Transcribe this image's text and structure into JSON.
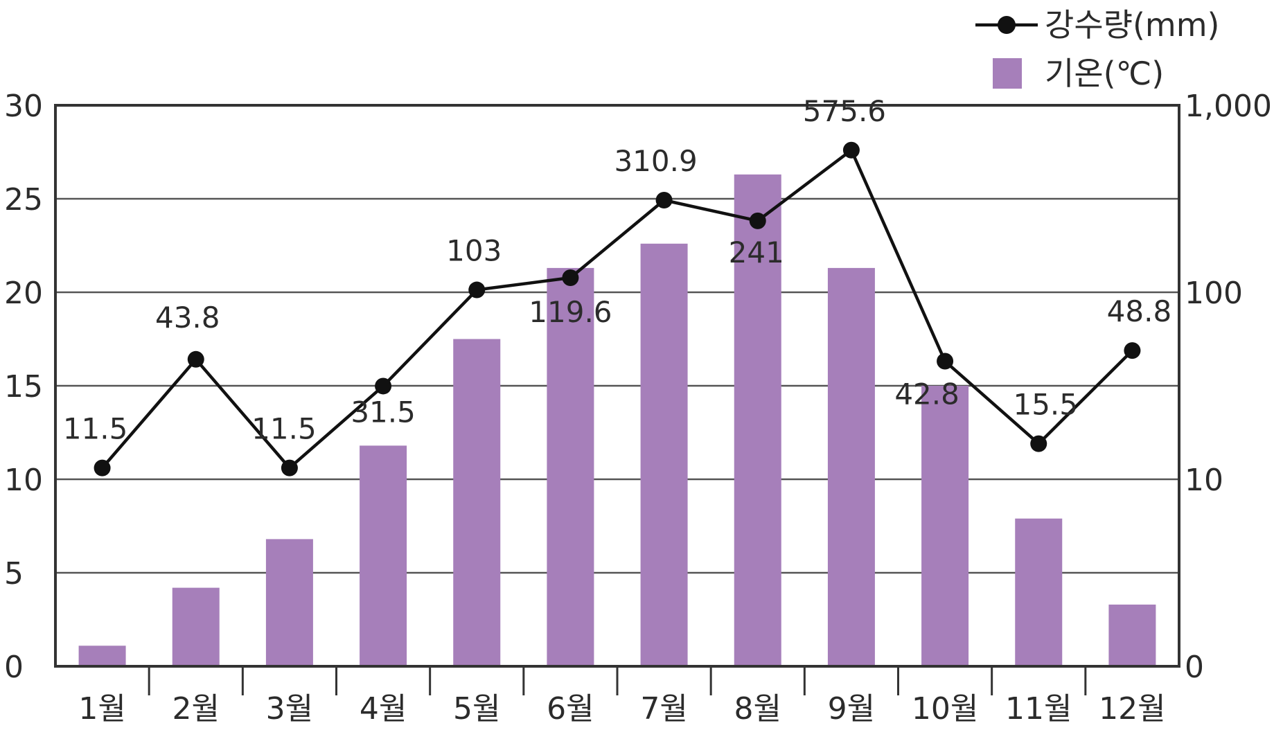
{
  "chart_data": {
    "type": "bar",
    "categories": [
      "1월",
      "2월",
      "3월",
      "4월",
      "5월",
      "6월",
      "7월",
      "8월",
      "9월",
      "10월",
      "11월",
      "12월"
    ],
    "series": [
      {
        "name": "기온(℃)",
        "type": "bar",
        "axis": "left",
        "color": "#a67fba",
        "values": [
          1.1,
          4.2,
          6.8,
          11.8,
          17.5,
          21.3,
          22.6,
          26.3,
          21.3,
          15.0,
          7.9,
          3.3
        ]
      },
      {
        "name": "강수량(mm)",
        "type": "line",
        "axis": "right",
        "color": "#111111",
        "values": [
          11.5,
          43.8,
          11.5,
          31.5,
          103,
          119.6,
          310.9,
          241,
          575.6,
          42.8,
          15.5,
          48.8
        ],
        "labels": [
          "11.5",
          "43.8",
          "11.5",
          "31.5",
          "103",
          "119.6",
          "310.9",
          "241",
          "575.6",
          "42.8",
          "15.5",
          "48.8"
        ]
      }
    ],
    "y_left": {
      "min": 0,
      "max": 30,
      "ticks": [
        "0",
        "5",
        "10",
        "15",
        "20",
        "25",
        "30"
      ]
    },
    "y_right": {
      "scale": "log",
      "ticks": [
        "0",
        "10",
        "100",
        "1,000"
      ]
    },
    "grid": true,
    "legend_position": "top-right"
  }
}
